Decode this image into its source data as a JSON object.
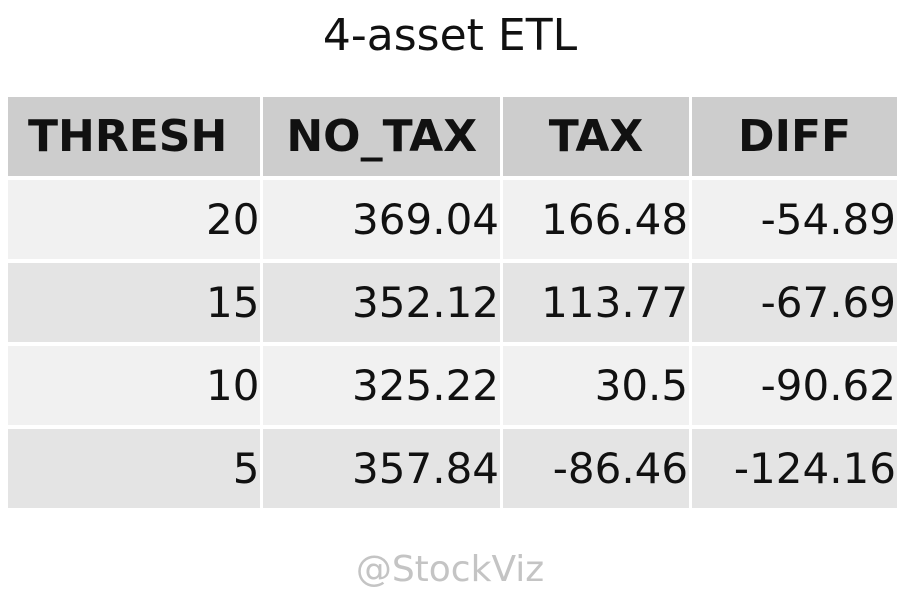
{
  "chart_data": {
    "type": "table",
    "title": "4-asset ETL",
    "columns": [
      "THRESH",
      "NO_TAX",
      "TAX",
      "DIFF"
    ],
    "rows": [
      [
        "20",
        "369.04",
        "166.48",
        "-54.89"
      ],
      [
        "15",
        "352.12",
        "113.77",
        "-67.69"
      ],
      [
        "10",
        "325.22",
        "30.5",
        "-90.62"
      ],
      [
        "5",
        "357.84",
        "-86.46",
        "-124.16"
      ]
    ],
    "colors": {
      "header_bg": "#cdcdcd",
      "row_odd_bg": "#f1f1f1",
      "row_even_bg": "#e4e4e4",
      "watermark": "#c4c4c4"
    }
  },
  "watermark": "@StockViz"
}
